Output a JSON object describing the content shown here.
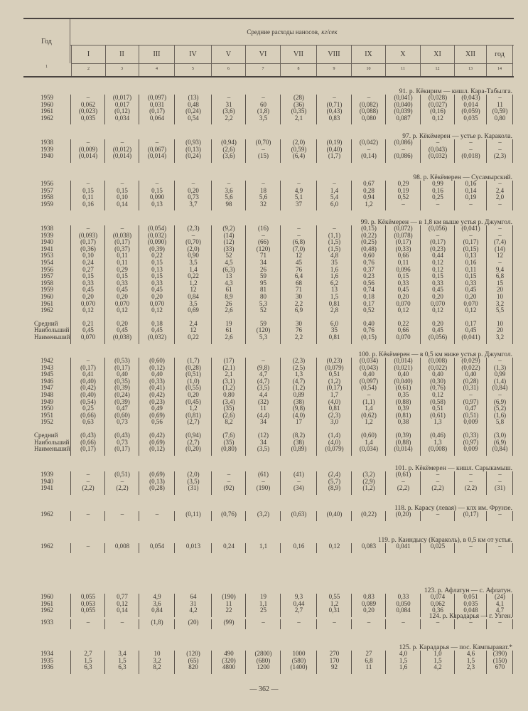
{
  "header": {
    "year_label": "Год",
    "title": "Средние расходы наносов,",
    "unit": "кг/сек",
    "months": [
      "I",
      "II",
      "III",
      "IV",
      "V",
      "VI",
      "VII",
      "VIII",
      "IX",
      "X",
      "XI",
      "XII",
      "год"
    ],
    "col_numbers": [
      "1",
      "2",
      "3",
      "4",
      "5",
      "6",
      "7",
      "8",
      "9",
      "10",
      "11",
      "12",
      "13",
      "14"
    ]
  },
  "stat_labels": {
    "avg": "Средний",
    "max": "Наибольший",
    "min": "Наименьший"
  },
  "sections": [
    {
      "title": "91. р. Кёкирим — кишл. Кара-Табылга.",
      "rows": [
        {
          "year": "1959",
          "v": [
            "–",
            "(0,017)",
            "(0,097)",
            "(13)",
            "–",
            "–",
            "(28)",
            "–",
            "–",
            "(0,041)",
            "(0,028)",
            "(0,043)",
            "–"
          ]
        },
        {
          "year": "1960",
          "v": [
            "0,062",
            "0,017",
            "0,031",
            "0,48",
            "31",
            "60",
            "(36)",
            "(0,71)",
            "(0,082)",
            "(0,040)",
            "(0,027)",
            "0,014",
            "11"
          ]
        },
        {
          "year": "1961",
          "v": [
            "(0,023)",
            "(0,12)",
            "(0,17)",
            "(0,24)",
            "(3,6)",
            "(1,8)",
            "(0,35)",
            "(0,43)",
            "(0,088)",
            "(0,039)",
            "(0,16)",
            "(0,059)",
            "(0,59)"
          ]
        },
        {
          "year": "1962",
          "v": [
            "0,035",
            "0,034",
            "0,064",
            "0,54",
            "2,2",
            "3,5",
            "2,1",
            "0,83",
            "0,080",
            "0,087",
            "0,12",
            "0,035",
            "0,80"
          ]
        }
      ]
    },
    {
      "title": "97. р. Кёкёмерен — устье р. Каракола.",
      "rows": [
        {
          "year": "1938",
          "v": [
            "–",
            "–",
            "–",
            "(0,93)",
            "(0,94)",
            "(0,70)",
            "(2,0)",
            "(0,19)",
            "(0,042)",
            "(0,086)",
            "–",
            "–",
            "–"
          ]
        },
        {
          "year": "1939",
          "v": [
            "(0,009)",
            "(0,012)",
            "(0,067)",
            "(0,13)",
            "(2,6)",
            "–",
            "(0,59)",
            "(0,40)",
            "–",
            "–",
            "(0,043)",
            "–",
            "–"
          ]
        },
        {
          "year": "1940",
          "v": [
            "(0,014)",
            "(0,014)",
            "(0,014)",
            "(0,24)",
            "(3,6)",
            "(15)",
            "(6,4)",
            "(1,7)",
            "(0,14)",
            "(0,086)",
            "(0,032)",
            "(0,018)",
            "(2,3)"
          ]
        }
      ]
    },
    {
      "title": "98. р. Кёкёмерен — Сусамырский.",
      "rows": [
        {
          "year": "1956",
          "v": [
            "–",
            "–",
            "–",
            "–",
            "–",
            "–",
            "–",
            "–",
            "0,67",
            "0,29",
            "0,99",
            "0,16",
            "–"
          ]
        },
        {
          "year": "1957",
          "v": [
            "0,15",
            "0,15",
            "0,15",
            "0,20",
            "3,6",
            "18",
            "4,9",
            "1,4",
            "0,28",
            "0,19",
            "0,16",
            "0,14",
            "2,4"
          ]
        },
        {
          "year": "1958",
          "v": [
            "0,11",
            "0,10",
            "0,090",
            "0,73",
            "5,6",
            "5,6",
            "5,1",
            "5,4",
            "0,94",
            "0,52",
            "0,25",
            "0,19",
            "2,0"
          ]
        },
        {
          "year": "1959",
          "v": [
            "0,16",
            "0,14",
            "0,13",
            "3,7",
            "98",
            "32",
            "37",
            "6,0",
            "1,2",
            "–",
            "–",
            "–",
            "–"
          ]
        }
      ]
    },
    {
      "title": "99. р. Кёкёмерен — в 1,8 км выше устья р. Джумгол.",
      "rows": [
        {
          "year": "1938",
          "v": [
            "–",
            "–",
            "(0,054)",
            "(2,3)",
            "(9,2)",
            "(16)",
            "–",
            "–",
            "(0,15)",
            "(0,072)",
            "(0,056)",
            "(0,041)",
            "–"
          ]
        },
        {
          "year": "1939",
          "v": [
            "(0,093)",
            "(0,038)",
            "(0,032)",
            "–",
            "(14)",
            "–",
            "–",
            "(1,1)",
            "(0,22)",
            "(0,078)",
            "–",
            "–",
            "–"
          ]
        },
        {
          "year": "1940",
          "v": [
            "(0,17)",
            "(0,17)",
            "(0,090)",
            "(0,70)",
            "(12)",
            "(66)",
            "(6,8)",
            "(1,5)",
            "(0,25)",
            "(0,17)",
            "(0,17)",
            "(0,17)",
            "(7,4)"
          ]
        },
        {
          "year": "1941",
          "v": [
            "(0,36)",
            "(0,37)",
            "(0,39)",
            "(2,0)",
            "(33)",
            "(120)",
            "(7,0)",
            "(1,5)",
            "(0,48)",
            "(0,33)",
            "(0,23)",
            "(0,15)",
            "(14)"
          ]
        },
        {
          "year": "1953",
          "v": [
            "0,10",
            "0,11",
            "0,22",
            "0,90",
            "52",
            "71",
            "12",
            "4,8",
            "0,60",
            "0,66",
            "0,44",
            "0,13",
            "12"
          ]
        },
        {
          "year": "1954",
          "v": [
            "0,24",
            "0,11",
            "0,15",
            "3,5",
            "4,5",
            "34",
            "45",
            "35",
            "0,76",
            "0,11",
            "0,12",
            "0,16",
            "–"
          ]
        },
        {
          "year": "1956",
          "v": [
            "0,27",
            "0,29",
            "0,13",
            "1,4",
            "(6,3)",
            "26",
            "76",
            "1,6",
            "0,37",
            "0,096",
            "0,12",
            "0,11",
            "9,4"
          ]
        },
        {
          "year": "1957",
          "v": [
            "0,15",
            "0,15",
            "0,15",
            "0,22",
            "13",
            "59",
            "6,4",
            "1,6",
            "0,23",
            "0,15",
            "0,15",
            "0,15",
            "6,8"
          ]
        },
        {
          "year": "1958",
          "v": [
            "0,33",
            "0,33",
            "0,33",
            "1,2",
            "4,3",
            "95",
            "68",
            "6,2",
            "0,56",
            "0,33",
            "0,33",
            "0,33",
            "15"
          ]
        },
        {
          "year": "1959",
          "v": [
            "0,45",
            "0,45",
            "0,45",
            "12",
            "61",
            "81",
            "71",
            "13",
            "0,74",
            "0,45",
            "0,45",
            "0,45",
            "20"
          ]
        },
        {
          "year": "1960",
          "v": [
            "0,20",
            "0,20",
            "0,20",
            "0,84",
            "8,9",
            "80",
            "30",
            "1,5",
            "0,18",
            "0,20",
            "0,20",
            "0,20",
            "10"
          ]
        },
        {
          "year": "1961",
          "v": [
            "0,070",
            "0,070",
            "0,070",
            "3,5",
            "26",
            "5,3",
            "2,2",
            "0,81",
            "0,17",
            "0,070",
            "0,070",
            "0,070",
            "3,2"
          ]
        },
        {
          "year": "1962",
          "v": [
            "0,12",
            "0,12",
            "0,12",
            "0,69",
            "2,6",
            "52",
            "6,9",
            "2,8",
            "0,52",
            "0,12",
            "0,12",
            "0,12",
            "5,5"
          ]
        }
      ],
      "stats": {
        "avg": [
          "0,21",
          "0,20",
          "0,18",
          "2,4",
          "19",
          "59",
          "30",
          "6,0",
          "0,40",
          "0,22",
          "0,20",
          "0,17",
          "10"
        ],
        "max": [
          "0,45",
          "0,45",
          "0,45",
          "12",
          "61",
          "(120)",
          "76",
          "35",
          "0,76",
          "0,66",
          "0,45",
          "0,45",
          "20"
        ],
        "min": [
          "0,070",
          "(0,038)",
          "(0,032)",
          "0,22",
          "2,6",
          "5,3",
          "2,2",
          "0,81",
          "(0,15)",
          "0,070",
          "(0,056)",
          "(0,041)",
          "3,2"
        ]
      }
    },
    {
      "title": "100. р. Кёкёмерен — в 0,5 км ниже устья р. Джумгол.",
      "rows": [
        {
          "year": "1942",
          "v": [
            "–",
            "(0,53)",
            "(0,60)",
            "(1,7)",
            "(17)",
            "–",
            "(2,3)",
            "(0,23)",
            "(0,034)",
            "(0,014)",
            "(0,008)",
            "(0,029)",
            "–"
          ]
        },
        {
          "year": "1943",
          "v": [
            "(0,17)",
            "(0,17)",
            "(0,12)",
            "(0,28)",
            "(2,1)",
            "(9,8)",
            "(2,5)",
            "(0,079)",
            "(0,043)",
            "(0,021)",
            "(0,022)",
            "(0,022)",
            "(1,3)"
          ]
        },
        {
          "year": "1945",
          "v": [
            "0,41",
            "0,40",
            "0,40",
            "(0,51)",
            "2,1",
            "4,7",
            "1,3",
            "0,51",
            "0,40",
            "0,40",
            "0,40",
            "0,40",
            "0,99"
          ]
        },
        {
          "year": "1946",
          "v": [
            "(0,40)",
            "(0,35)",
            "(0,33)",
            "(1,0)",
            "(3,1)",
            "(4,7)",
            "(4,7)",
            "(1,2)",
            "(0,097)",
            "(0,040)",
            "(0,30)",
            "(0,28)",
            "(1,4)"
          ]
        },
        {
          "year": "1947",
          "v": [
            "(0,42)",
            "(0,39)",
            "(0,41)",
            "(0,55)",
            "(1,2)",
            "(3,5)",
            "(1,2)",
            "(0,17)",
            "(0,54)",
            "(0,61)",
            "(0,76)",
            "(0,31)",
            "(0,84)"
          ]
        },
        {
          "year": "1948",
          "v": [
            "(0,40)",
            "(0,24)",
            "(0,42)",
            "0,20",
            "0,80",
            "4,4",
            "0,89",
            "1,7",
            "–",
            "0,35",
            "0,12",
            "–",
            "–"
          ]
        },
        {
          "year": "1949",
          "v": [
            "(0,54)",
            "(0,39)",
            "(0,23)",
            "(0,45)",
            "(3,4)",
            "(32)",
            "(38)",
            "(4,0)",
            "(1,1)",
            "(0,88)",
            "(0,58)",
            "(0,97)",
            "(6,9)"
          ]
        },
        {
          "year": "1950",
          "v": [
            "0,25",
            "0,47",
            "0,49",
            "1,2",
            "(35)",
            "11",
            "(9,8)",
            "0,81",
            "1,4",
            "0,39",
            "0,51",
            "0,47",
            "(5,2)"
          ]
        },
        {
          "year": "1951",
          "v": [
            "(0,66)",
            "(0,60)",
            "(0,69)",
            "(0,81)",
            "(2,6)",
            "(4,4)",
            "(4,0)",
            "(2,3)",
            "(0,62)",
            "(0,81)",
            "(0,61)",
            "(0,51)",
            "(1,6)"
          ]
        },
        {
          "year": "1952",
          "v": [
            "0,63",
            "0,73",
            "0,56",
            "(2,7)",
            "8,2",
            "34",
            "17",
            "3,0",
            "1,2",
            "0,38",
            "1,3",
            "0,009",
            "5,8"
          ]
        }
      ],
      "stats": {
        "avg": [
          "(0,43)",
          "(0,43)",
          "(0,42)",
          "(0,94)",
          "(7,6)",
          "(12)",
          "(8,2)",
          "(1,4)",
          "(0,60)",
          "(0,39)",
          "(0,46)",
          "(0,33)",
          "(3,0)"
        ],
        "max": [
          "(0,66)",
          "0,73",
          "(0,69)",
          "(2,7)",
          "(35)",
          "34",
          "(38)",
          "(4,0)",
          "1,4",
          "(0,88)",
          "1,3",
          "(0,97)",
          "(6,9)"
        ],
        "min": [
          "(0,17)",
          "(0,17)",
          "(0,12)",
          "(0,20)",
          "(0,80)",
          "(3,5)",
          "(0,89)",
          "(0,079)",
          "(0,034)",
          "(0,014)",
          "(0,008)",
          "0,009",
          "(0,84)"
        ]
      }
    },
    {
      "title": "101. р. Кёкёмерен — кишл. Сарыкамыш.",
      "rows": [
        {
          "year": "1939",
          "v": [
            "–",
            "(0,51)",
            "(0,69)",
            "(2,0)",
            "–",
            "(61)",
            "(41)",
            "(2,4)",
            "(3,2)",
            "(0,61)",
            "–",
            "–",
            "–"
          ]
        },
        {
          "year": "1940",
          "v": [
            "–",
            "–",
            "(0,13)",
            "(3,5)",
            "–",
            "–",
            "–",
            "(5,7)",
            "(2,9)",
            "–",
            "–",
            "–",
            "–"
          ]
        },
        {
          "year": "1941",
          "v": [
            "(2,2)",
            "(2,2)",
            "(0,28)",
            "(31)",
            "(92)",
            "(190)",
            "(34)",
            "(8,9)",
            "(1,2)",
            "(2,2)",
            "(2,2)",
            "(2,2)",
            "(31)"
          ]
        }
      ]
    },
    {
      "title": "118. р. Карасу (левая) — клх им. Фрунзе.",
      "rows": [
        {
          "year": "1962",
          "v": [
            "–",
            "–",
            "–",
            "(0,11)",
            "(0,76)",
            "(3,2)",
            "(0,63)",
            "(0,40)",
            "(0,22)",
            "(0,20)",
            "–",
            "(0,17)",
            "–"
          ]
        }
      ]
    },
    {
      "title": "119. р. Каиндысу (Караколь), в 0,5 км от устья.",
      "rows": [
        {
          "year": "1962",
          "v": [
            "–",
            "0,008",
            "0,054",
            "0,013",
            "0,24",
            "1,1",
            "0,16",
            "0,12",
            "0,083",
            "0,041",
            "0,025",
            "–",
            "–"
          ]
        }
      ]
    },
    {
      "title": "123. р. Афлатун — с. Афлатун.",
      "rows": [
        {
          "year": "1960",
          "v": [
            "0,055",
            "0,77",
            "4,9",
            "64",
            "(190)",
            "19",
            "9,3",
            "0,55",
            "0,83",
            "0,33",
            "0,074",
            "0,051",
            "(24)"
          ]
        },
        {
          "year": "1961",
          "v": [
            "0,053",
            "0,12",
            "3,6",
            "31",
            "11",
            "1,1",
            "0,44",
            "1,2",
            "0,089",
            "0,050",
            "0,062",
            "0,035",
            "4,1"
          ]
        },
        {
          "year": "1962",
          "v": [
            "0,055",
            "0,14",
            "0,84",
            "4,2",
            "22",
            "25",
            "2,7",
            "0,31",
            "0,20",
            "0,084",
            "0,36",
            "0,048",
            "4,7"
          ]
        }
      ]
    },
    {
      "title": "124. р. Карадарья — г. Узген.",
      "rows": [
        {
          "year": "1933",
          "v": [
            "–",
            "–",
            "(1,8)",
            "(20)",
            "(99)",
            "–",
            "–",
            "–",
            "–",
            "–",
            "–",
            "–",
            "–"
          ]
        }
      ]
    },
    {
      "title": "125. р. Карадарья — пос. Кампырават.*",
      "rows": [
        {
          "year": "1934",
          "v": [
            "2,7",
            "3,4",
            "10",
            "(120)",
            "490",
            "(2800)",
            "1000",
            "270",
            "27",
            "4,0",
            "1,0",
            "4,6",
            "(390)"
          ]
        },
        {
          "year": "1935",
          "v": [
            "1,5",
            "1,5",
            "3,2",
            "(65)",
            "(320)",
            "(680)",
            "(580)",
            "170",
            "6,8",
            "1,5",
            "1,5",
            "1,5",
            "(150)"
          ]
        },
        {
          "year": "1936",
          "v": [
            "6,3",
            "6,3",
            "8,2",
            "820",
            "4800",
            "1200",
            "(1400)",
            "92",
            "11",
            "1,6",
            "4,2",
            "2,3",
            "670"
          ]
        }
      ]
    }
  ],
  "page_number": "— 362 —"
}
